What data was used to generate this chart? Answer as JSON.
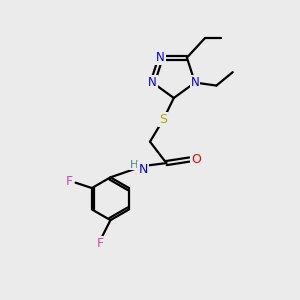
{
  "background_color": "#ebebeb",
  "atom_colors": {
    "C": "#000000",
    "N": "#0000ee",
    "O": "#ee0000",
    "S": "#aaaa00",
    "F": "#dd44aa",
    "H": "#448888",
    "NH": "#0000ee"
  },
  "bond_lw": 1.6
}
